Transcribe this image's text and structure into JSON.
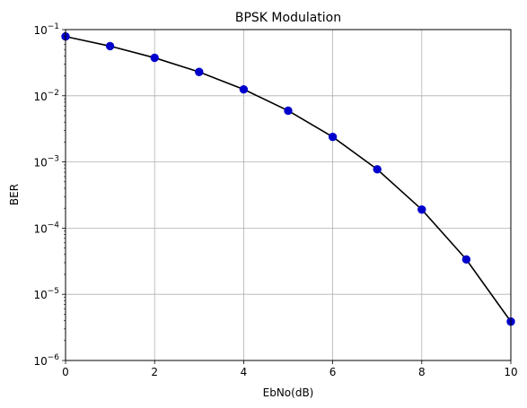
{
  "chart_data": {
    "type": "line",
    "title": "BPSK Modulation",
    "xlabel": "EbNo(dB)",
    "ylabel": "BER",
    "xlim": [
      0,
      10
    ],
    "ylim": [
      1e-06,
      0.1
    ],
    "yscale": "log",
    "grid": true,
    "x_ticks": [
      0,
      2,
      4,
      6,
      8,
      10
    ],
    "y_ticks": [
      {
        "value": 1e-06,
        "base": "10",
        "exp": "−6"
      },
      {
        "value": 1e-05,
        "base": "10",
        "exp": "−5"
      },
      {
        "value": 0.0001,
        "base": "10",
        "exp": "−4"
      },
      {
        "value": 0.001,
        "base": "10",
        "exp": "−3"
      },
      {
        "value": 0.01,
        "base": "10",
        "exp": "−2"
      },
      {
        "value": 0.1,
        "base": "10",
        "exp": "−1"
      }
    ],
    "series": [
      {
        "x": [
          0,
          1,
          2,
          3,
          4,
          5,
          6,
          7,
          8,
          9,
          10
        ],
        "y": [
          0.0786,
          0.0563,
          0.0375,
          0.0229,
          0.0125,
          0.00595,
          0.00239,
          0.000773,
          0.000191,
          3.36e-05,
          3.87e-06
        ],
        "line_color": "#000000",
        "marker_color": "#0000cc"
      }
    ]
  }
}
